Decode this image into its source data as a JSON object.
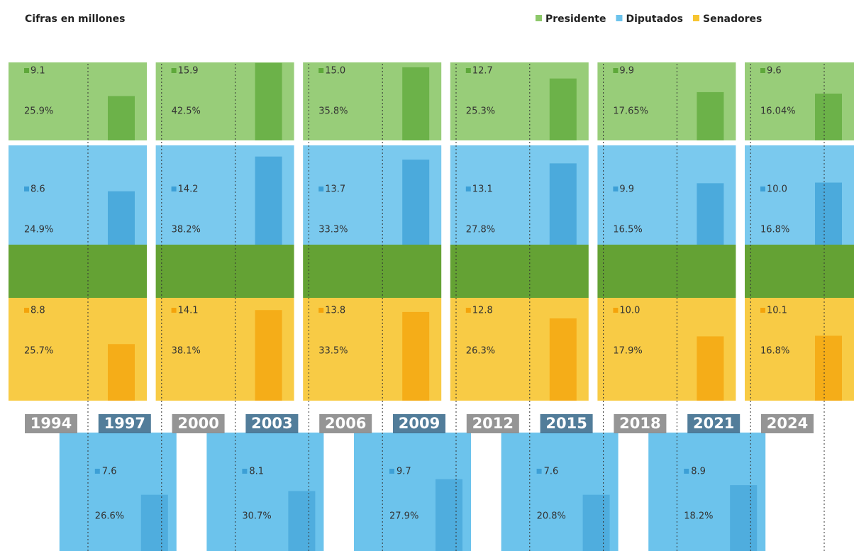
{
  "header": {
    "title": "Cifras en millones"
  },
  "legend": [
    {
      "name": "Presidente",
      "color": "#8dc86a"
    },
    {
      "name": "Diputados",
      "color": "#6cc3ec"
    },
    {
      "name": "Senadores",
      "color": "#f7c531"
    }
  ],
  "elections": [
    {
      "year": "1994",
      "presidente": {
        "value": "9.1",
        "pct": "25.9%"
      },
      "diputados": {
        "value": "8.6",
        "pct": "24.9%"
      },
      "senadores": {
        "value": "8.8",
        "pct": "25.7%"
      }
    },
    {
      "year": "1997",
      "diputados": {
        "value": "7.6",
        "pct": "26.6%"
      }
    },
    {
      "year": "2000",
      "presidente": {
        "value": "15.9",
        "pct": "42.5%"
      },
      "diputados": {
        "value": "14.2",
        "pct": "38.2%"
      },
      "senadores": {
        "value": "14.1",
        "pct": "38.1%"
      }
    },
    {
      "year": "2003",
      "diputados": {
        "value": "8.1",
        "pct": "30.7%"
      }
    },
    {
      "year": "2006",
      "presidente": {
        "value": "15.0",
        "pct": "35.8%"
      },
      "diputados": {
        "value": "13.7",
        "pct": "33.3%"
      },
      "senadores": {
        "value": "13.8",
        "pct": "33.5%"
      }
    },
    {
      "year": "2009",
      "diputados": {
        "value": "9.7",
        "pct": "27.9%"
      }
    },
    {
      "year": "2012",
      "presidente": {
        "value": "12.7",
        "pct": "25.3%"
      },
      "diputados": {
        "value": "13.1",
        "pct": "27.8%"
      },
      "senadores": {
        "value": "12.8",
        "pct": "26.3%"
      }
    },
    {
      "year": "2015",
      "diputados": {
        "value": "7.6",
        "pct": "20.8%"
      }
    },
    {
      "year": "2018",
      "presidente": {
        "value": "9.9",
        "pct": "17.65%"
      },
      "diputados": {
        "value": "9.9",
        "pct": "16.5%"
      },
      "senadores": {
        "value": "10.0",
        "pct": "17.9%"
      }
    },
    {
      "year": "2021",
      "diputados": {
        "value": "8.9",
        "pct": "18.2%"
      }
    },
    {
      "year": "2024",
      "presidente": {
        "value": "9.6",
        "pct": "16.04%"
      },
      "diputados": {
        "value": "10.0",
        "pct": "16.8%"
      },
      "senadores": {
        "value": "10.1",
        "pct": "16.8%"
      }
    }
  ]
}
